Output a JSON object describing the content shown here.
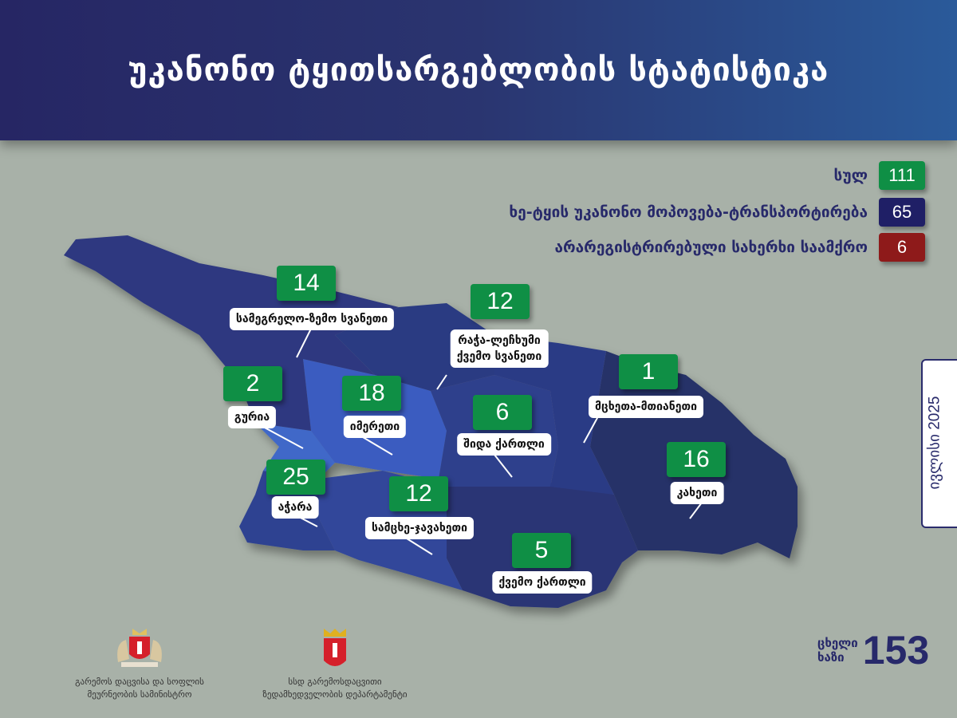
{
  "header": {
    "title": "უკანონო ტყითსარგებლობის სტატისტიკა"
  },
  "legend": [
    {
      "label": "სულ",
      "value": "111",
      "color": "#0f8f45"
    },
    {
      "label": "ხე-ტყის უკანონო მოპოვება-ტრანსპორტირება",
      "value": "65",
      "color": "#1f1f66"
    },
    {
      "label": "არარეგისტრირებული სახერხი საამქრო",
      "value": "6",
      "color": "#8e1a1a"
    }
  ],
  "regions": [
    {
      "name": "სამეგრელო-ზემო სვანეთი",
      "value": "14"
    },
    {
      "name": "რაჭა-ლეჩხუმი ქვემო სვანეთი",
      "value": "12"
    },
    {
      "name": "გურია",
      "value": "2"
    },
    {
      "name": "იმერეთი",
      "value": "18"
    },
    {
      "name": "შიდა ქართლი",
      "value": "6"
    },
    {
      "name": "მცხეთა-მთიანეთი",
      "value": "1"
    },
    {
      "name": "აჭარა",
      "value": "25"
    },
    {
      "name": "სამცხე-ჯავახეთი",
      "value": "12"
    },
    {
      "name": "ქვემო ქართლი",
      "value": "5"
    },
    {
      "name": "კახეთი",
      "value": "16"
    }
  ],
  "racha_lines": [
    "რაჭა-ლეჩხუმი",
    "ქვემო სვანეთი"
  ],
  "date": "ივლისი 2025",
  "hotline": {
    "line1": "ცხელი",
    "line2": "ხაზი",
    "number": "153"
  },
  "footer": {
    "ministry": [
      "გარემოს დაცვისა და სოფლის",
      "მეურნეობის სამინისტრო"
    ],
    "department": [
      "სსდ გარემოსდაცვითი",
      "ზედამხედველობის დეპარტამენტი"
    ]
  },
  "colors": {
    "header": "#262664",
    "number_badge": "#0f8f45",
    "background": "#a8b1a8"
  }
}
